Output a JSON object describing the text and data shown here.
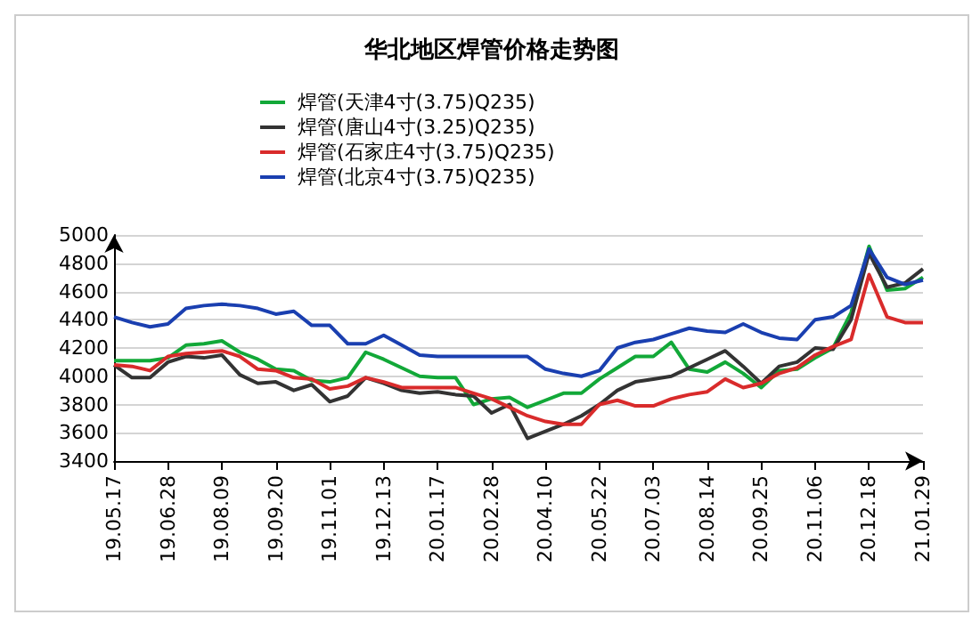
{
  "chart_data": {
    "type": "line",
    "title": "华北地区焊管价格走势图",
    "categories": [
      "19.05.17",
      null,
      null,
      "19.06.28",
      null,
      null,
      "19.08.09",
      null,
      null,
      "19.09.20",
      null,
      null,
      "19.11.01",
      null,
      null,
      "19.12.13",
      null,
      null,
      "20.01.17",
      null,
      null,
      "20.02.28",
      null,
      null,
      "20.04.10",
      null,
      null,
      "20.05.22",
      null,
      null,
      "20.07.03",
      null,
      null,
      "20.08.14",
      null,
      null,
      "20.09.25",
      null,
      null,
      "20.11.06",
      null,
      null,
      "20.12.18",
      null,
      null,
      "21.01.29"
    ],
    "series": [
      {
        "name": "焊管(天津4寸(3.75)Q235)",
        "color": "#12a838",
        "values": [
          4110,
          4110,
          4110,
          4130,
          4220,
          4230,
          4250,
          4170,
          4120,
          4050,
          4040,
          3970,
          3960,
          3990,
          4170,
          4120,
          4060,
          4000,
          3990,
          3990,
          3800,
          3840,
          3850,
          3780,
          3830,
          3880,
          3880,
          3980,
          4060,
          4140,
          4140,
          4240,
          4050,
          4030,
          4100,
          4020,
          3920,
          4040,
          4050,
          4130,
          4200,
          4450,
          4920,
          4610,
          4620,
          4700
        ]
      },
      {
        "name": "焊管(唐山4寸(3.25)Q235)",
        "color": "#333333",
        "values": [
          4080,
          3990,
          3990,
          4100,
          4140,
          4130,
          4150,
          4010,
          3950,
          3960,
          3900,
          3940,
          3820,
          3860,
          3990,
          3950,
          3900,
          3880,
          3890,
          3870,
          3860,
          3740,
          3800,
          3560,
          3610,
          3660,
          3720,
          3800,
          3900,
          3960,
          3980,
          4000,
          4060,
          4120,
          4180,
          4070,
          3950,
          4070,
          4100,
          4200,
          4190,
          4400,
          4870,
          4630,
          4660,
          4760
        ]
      },
      {
        "name": "焊管(石家庄4寸(3.75)Q235)",
        "color": "#d92b2b",
        "values": [
          4080,
          4070,
          4040,
          4140,
          4160,
          4170,
          4180,
          4140,
          4050,
          4040,
          3990,
          3980,
          3910,
          3930,
          3990,
          3960,
          3920,
          3920,
          3920,
          3920,
          3880,
          3840,
          3780,
          3720,
          3680,
          3660,
          3660,
          3800,
          3830,
          3790,
          3790,
          3840,
          3870,
          3890,
          3980,
          3920,
          3950,
          4020,
          4060,
          4150,
          4210,
          4260,
          4720,
          4420,
          4380,
          4380
        ]
      },
      {
        "name": "焊管(北京4寸(3.75)Q235)",
        "color": "#1a3fb0",
        "values": [
          4420,
          4380,
          4350,
          4370,
          4480,
          4500,
          4510,
          4500,
          4480,
          4440,
          4460,
          4360,
          4360,
          4230,
          4230,
          4290,
          4220,
          4150,
          4140,
          4140,
          4140,
          4140,
          4140,
          4140,
          4050,
          4020,
          4000,
          4040,
          4200,
          4240,
          4260,
          4300,
          4340,
          4320,
          4310,
          4370,
          4310,
          4270,
          4260,
          4400,
          4420,
          4500,
          4900,
          4700,
          4650,
          4680
        ]
      }
    ],
    "ylim": [
      3400,
      5000
    ],
    "yticks": [
      3400,
      3600,
      3800,
      4000,
      4200,
      4400,
      4600,
      4800,
      5000
    ],
    "grid": "y",
    "legend": "top left",
    "marker": "none",
    "line_style": "solid"
  }
}
